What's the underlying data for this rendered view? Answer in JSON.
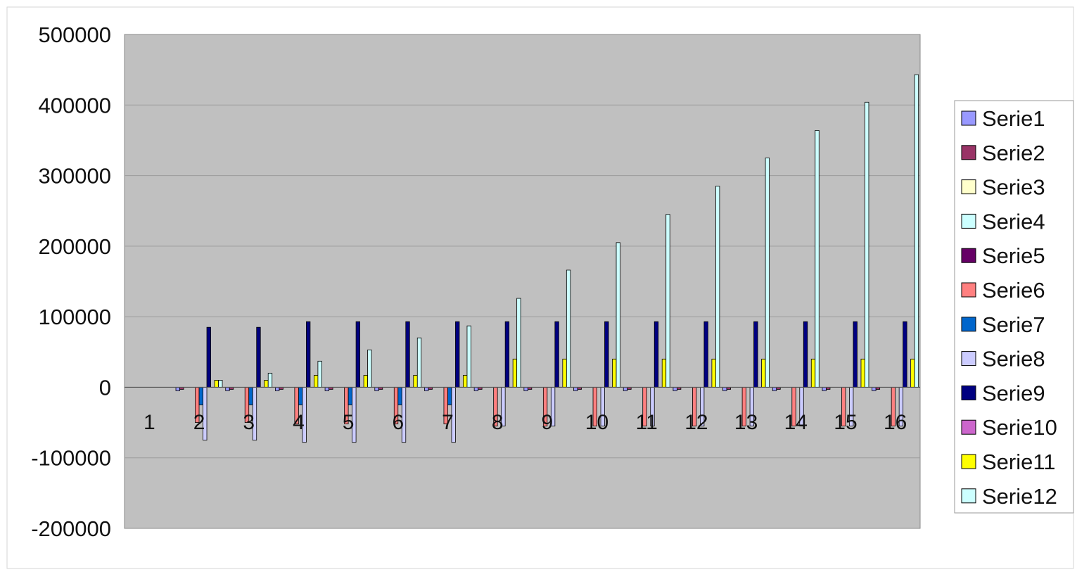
{
  "chart_data": {
    "type": "bar",
    "title": "",
    "xlabel": "",
    "ylabel": "",
    "ylim": [
      -200000,
      500000
    ],
    "yticks": [
      -200000,
      -100000,
      0,
      100000,
      200000,
      300000,
      400000,
      500000
    ],
    "ytick_labels": [
      "-200000",
      "-100000",
      "0",
      "100000",
      "200000",
      "300000",
      "400000",
      "500000"
    ],
    "grid": true,
    "legend_position": "right",
    "plot_background": "#c0c0c0",
    "categories": [
      "1",
      "2",
      "3",
      "4",
      "5",
      "6",
      "7",
      "8",
      "9",
      "10",
      "11",
      "12",
      "13",
      "14",
      "15",
      "16"
    ],
    "series": [
      {
        "name": "Serie1",
        "color": "#9999ff",
        "values": [
          0,
          -5000,
          -5000,
          -5000,
          -5000,
          -5000,
          -5000,
          -5000,
          -5000,
          -5000,
          -5000,
          -5000,
          -5000,
          -5000,
          -5000,
          -5000
        ]
      },
      {
        "name": "Serie2",
        "color": "#993366",
        "values": [
          0,
          -3000,
          -3000,
          -3000,
          -3000,
          -3000,
          -3000,
          -3000,
          -3000,
          -3000,
          -3000,
          -3000,
          -3000,
          -3000,
          -3000,
          -3000
        ]
      },
      {
        "name": "Serie3",
        "color": "#ffffcc",
        "values": [
          0,
          0,
          0,
          0,
          0,
          0,
          0,
          0,
          0,
          0,
          0,
          0,
          0,
          0,
          0,
          0
        ]
      },
      {
        "name": "Serie4",
        "color": "#ccffff",
        "values": [
          0,
          0,
          0,
          0,
          0,
          0,
          0,
          0,
          0,
          0,
          0,
          0,
          0,
          0,
          0,
          0
        ]
      },
      {
        "name": "Serie5",
        "color": "#660066",
        "values": [
          0,
          0,
          0,
          0,
          0,
          0,
          0,
          0,
          0,
          0,
          0,
          0,
          0,
          0,
          0,
          0
        ]
      },
      {
        "name": "Serie6",
        "color": "#ff8080",
        "values": [
          0,
          -50000,
          -50000,
          -52000,
          -52000,
          -52000,
          -52000,
          -55000,
          -55000,
          -55000,
          -55000,
          -55000,
          -55000,
          -55000,
          -55000,
          -55000
        ]
      },
      {
        "name": "Serie7",
        "color": "#0066cc",
        "values": [
          0,
          -25000,
          -25000,
          -25000,
          -25000,
          -25000,
          -25000,
          0,
          0,
          0,
          0,
          0,
          0,
          0,
          0,
          0
        ]
      },
      {
        "name": "Serie8",
        "color": "#ccccff",
        "values": [
          0,
          -75000,
          -75000,
          -78000,
          -78000,
          -78000,
          -78000,
          -55000,
          -55000,
          -55000,
          -55000,
          -55000,
          -55000,
          -55000,
          -55000,
          -55000
        ]
      },
      {
        "name": "Serie9",
        "color": "#000080",
        "values": [
          0,
          85000,
          85000,
          93000,
          93000,
          93000,
          93000,
          93000,
          93000,
          93000,
          93000,
          93000,
          93000,
          93000,
          93000,
          93000
        ]
      },
      {
        "name": "Serie10",
        "color": "#cc66cc",
        "values": [
          0,
          0,
          0,
          0,
          0,
          0,
          0,
          0,
          0,
          0,
          0,
          0,
          0,
          0,
          0,
          0
        ]
      },
      {
        "name": "Serie11",
        "color": "#ffff00",
        "values": [
          0,
          10000,
          10000,
          17000,
          17000,
          17000,
          17000,
          40000,
          40000,
          40000,
          40000,
          40000,
          40000,
          40000,
          40000,
          40000
        ]
      },
      {
        "name": "Serie12",
        "color": "#ccffff",
        "values": [
          0,
          10000,
          20000,
          37000,
          53000,
          70000,
          87000,
          126000,
          166000,
          205000,
          245000,
          285000,
          325000,
          364000,
          404000,
          443000
        ]
      }
    ]
  }
}
